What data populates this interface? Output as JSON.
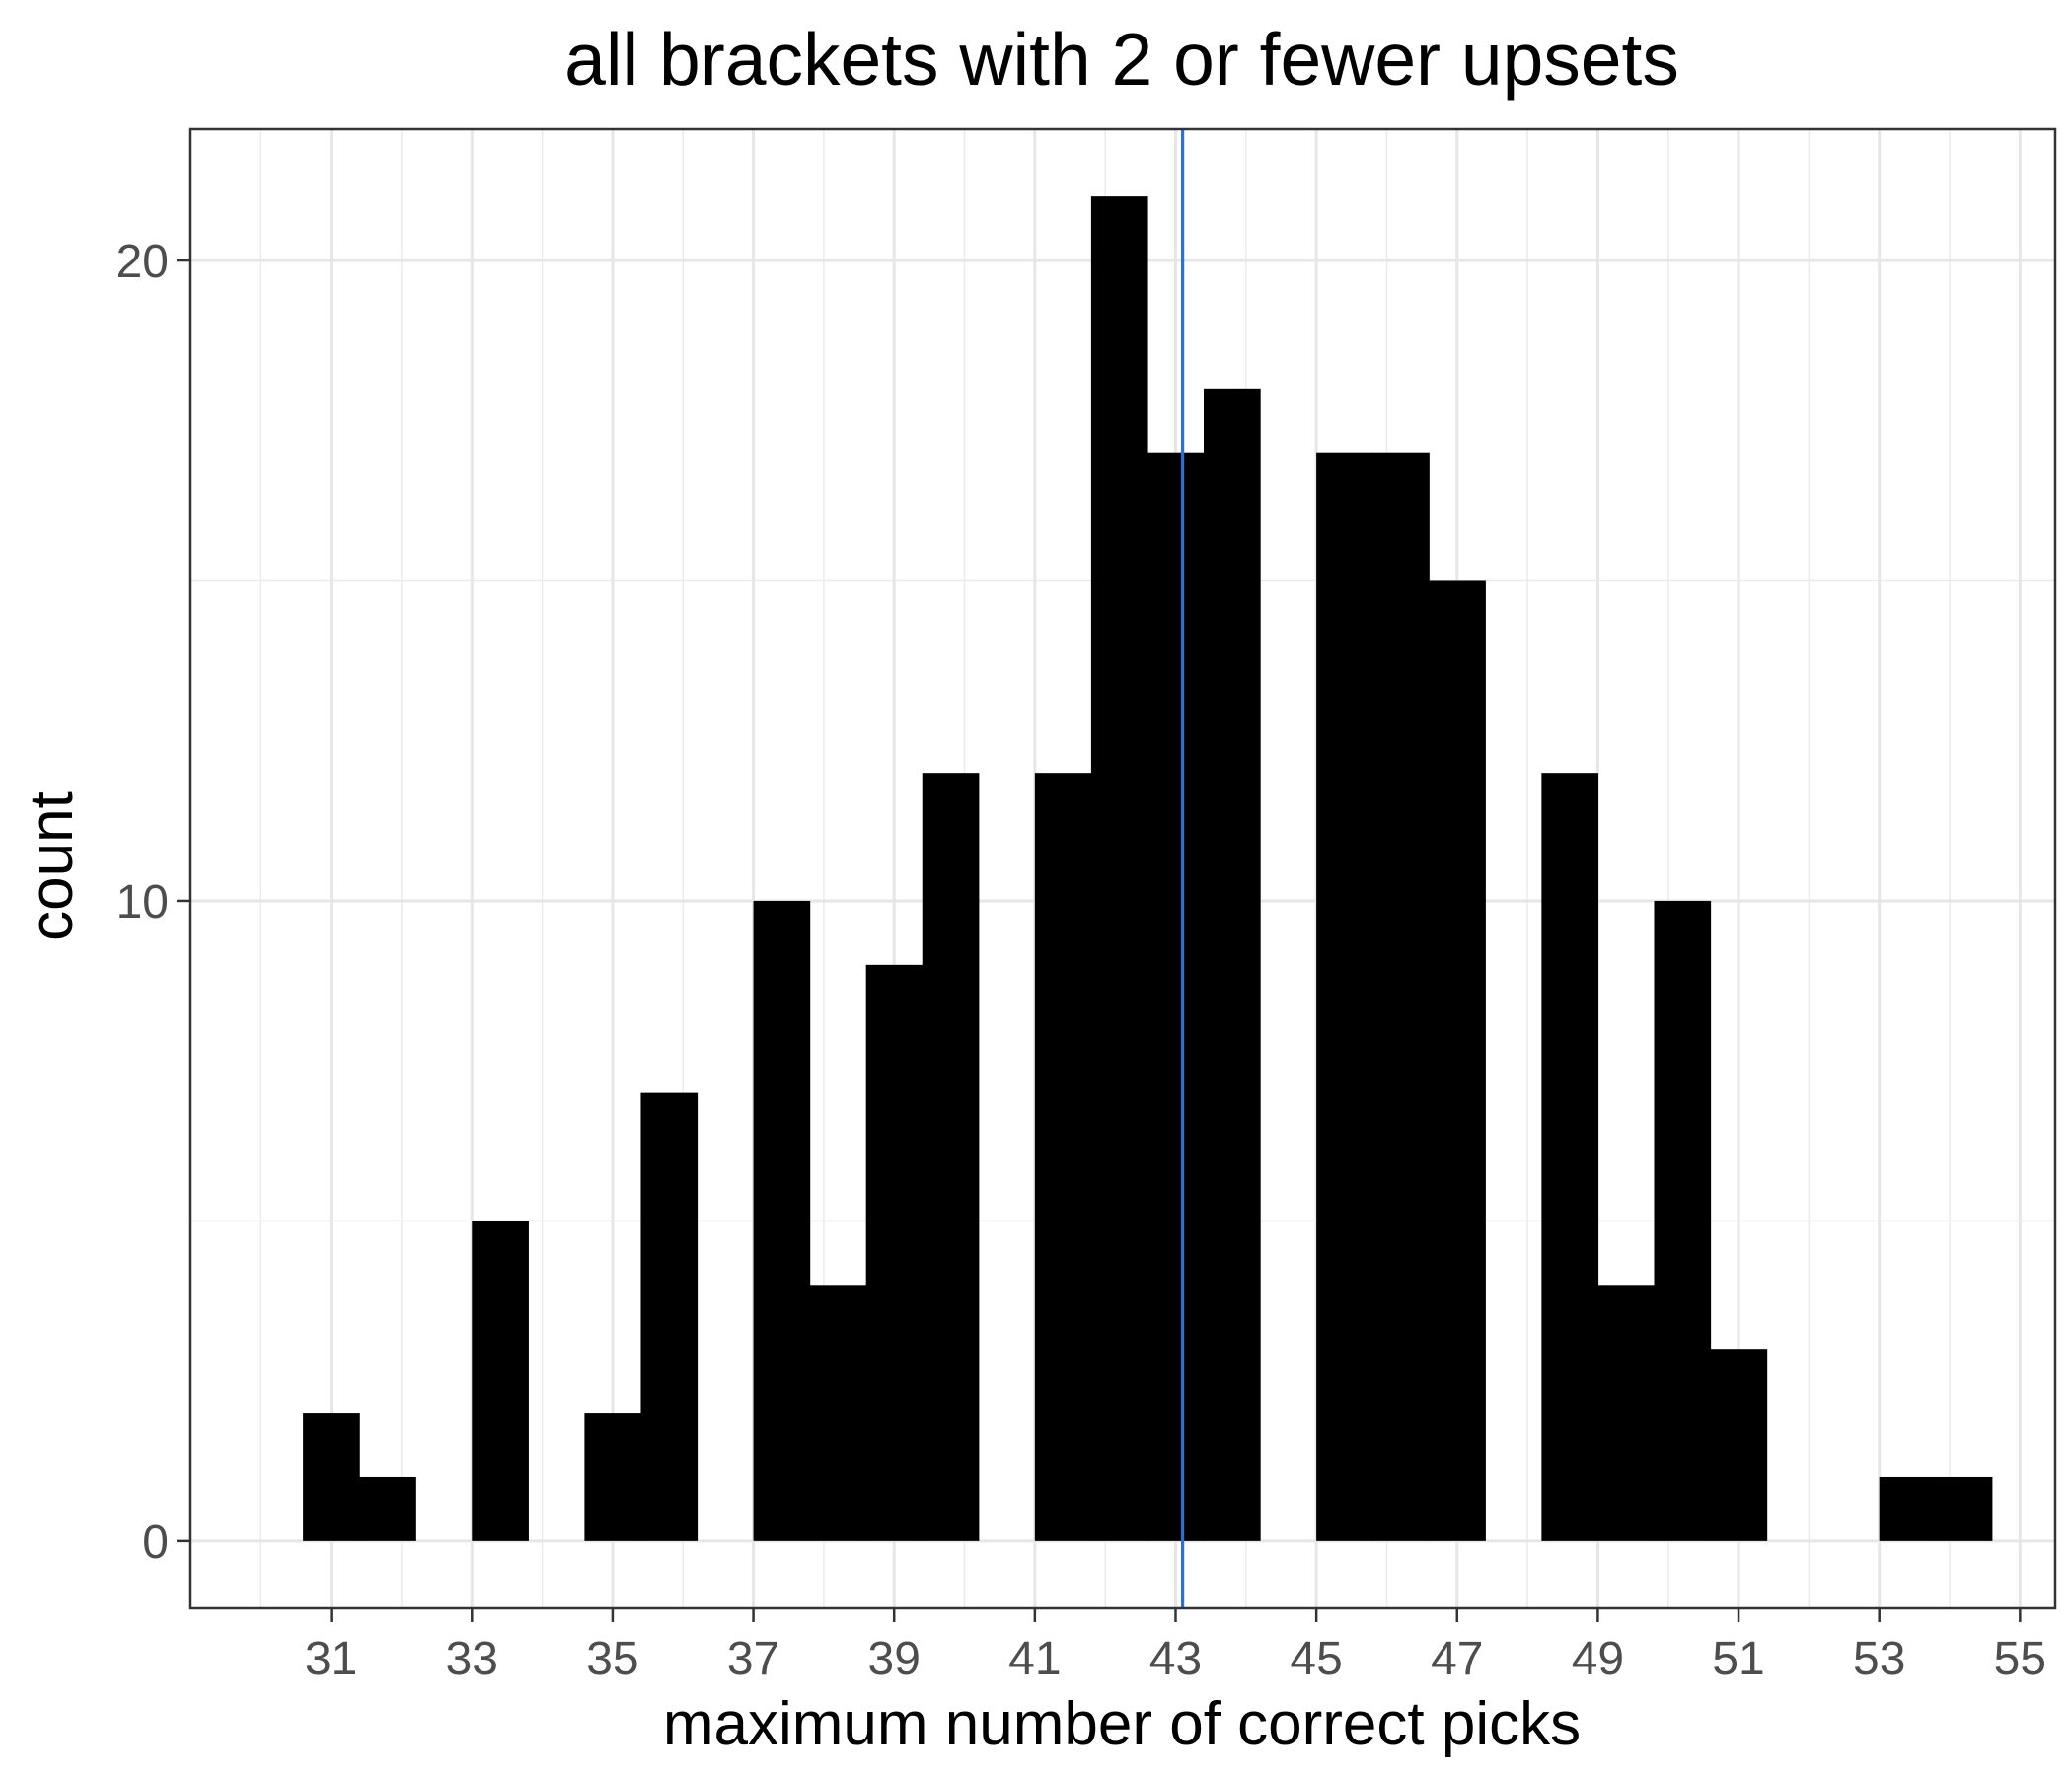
{
  "chart_data": {
    "type": "bar",
    "title": "all brackets with 2 or fewer upsets",
    "xlabel": "maximum number of correct picks",
    "ylabel": "count",
    "bin_width": 0.8,
    "bins": [
      {
        "x": 31.0,
        "count": 2
      },
      {
        "x": 31.8,
        "count": 1
      },
      {
        "x": 33.4,
        "count": 5
      },
      {
        "x": 35.0,
        "count": 2
      },
      {
        "x": 35.8,
        "count": 7
      },
      {
        "x": 37.4,
        "count": 10
      },
      {
        "x": 38.2,
        "count": 4
      },
      {
        "x": 39.0,
        "count": 9
      },
      {
        "x": 39.8,
        "count": 12
      },
      {
        "x": 41.4,
        "count": 12
      },
      {
        "x": 42.2,
        "count": 21
      },
      {
        "x": 43.0,
        "count": 17
      },
      {
        "x": 43.8,
        "count": 18
      },
      {
        "x": 45.4,
        "count": 17
      },
      {
        "x": 46.2,
        "count": 17
      },
      {
        "x": 47.0,
        "count": 15
      },
      {
        "x": 48.6,
        "count": 12
      },
      {
        "x": 49.4,
        "count": 4
      },
      {
        "x": 50.2,
        "count": 10
      },
      {
        "x": 51.0,
        "count": 3
      },
      {
        "x": 53.4,
        "count": 1
      },
      {
        "x": 54.2,
        "count": 1
      }
    ],
    "vline": {
      "x": 43.1,
      "color": "#2a6fdb"
    },
    "xlim": [
      29.0,
      55.5
    ],
    "ylim": [
      -1.05,
      22.05
    ],
    "x_ticks": [
      "31",
      "33",
      "35",
      "37",
      "39",
      "41",
      "43",
      "45",
      "47",
      "49",
      "51",
      "53",
      "55"
    ],
    "y_ticks": [
      "0",
      "10",
      "20"
    ],
    "y_minor": [
      5,
      15
    ],
    "bar_color": "#000000",
    "grid": true,
    "legend": "none"
  }
}
